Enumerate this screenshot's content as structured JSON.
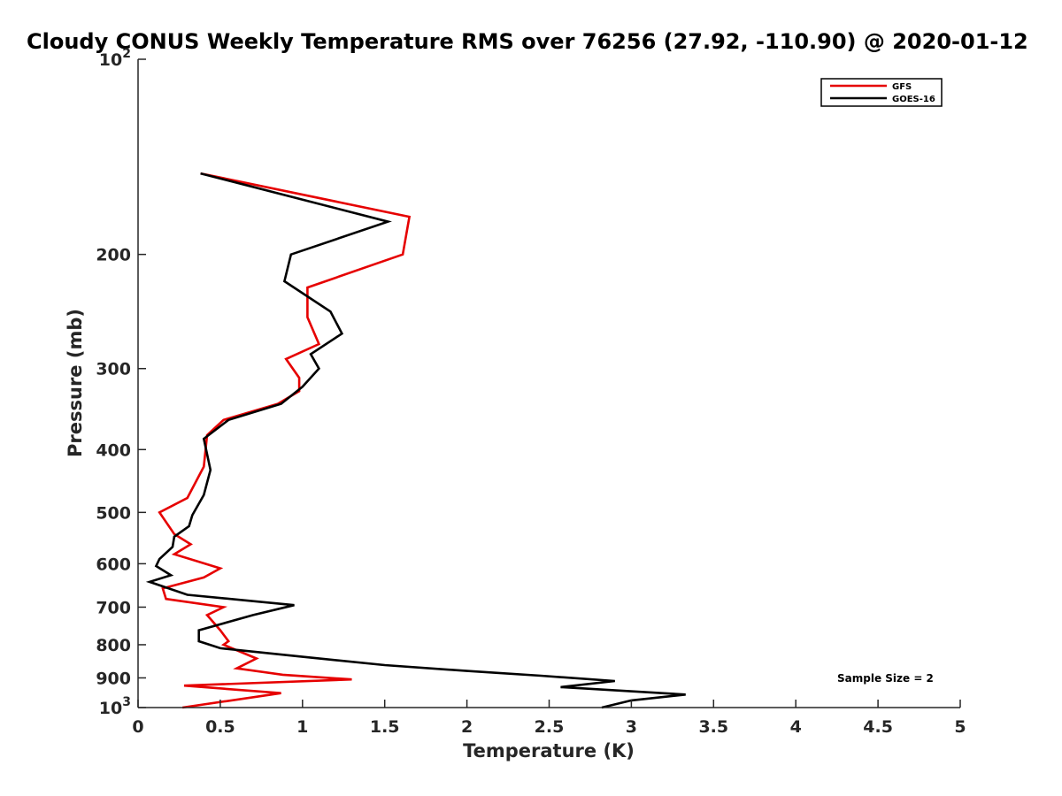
{
  "chart_data": {
    "type": "line",
    "title": "Cloudy CONUS Weekly Temperature RMS over 76256 (27.92, -110.90) @ 2020-01-12",
    "xlabel": "Temperature (K)",
    "ylabel": "Pressure (mb)",
    "xlim": [
      0,
      5
    ],
    "ylim": [
      100,
      1000
    ],
    "yscale": "log",
    "y_reversed": true,
    "grid": false,
    "legend_position": "top-right",
    "x_ticks": [
      {
        "value": 0,
        "label": "0"
      },
      {
        "value": 0.5,
        "label": "0.5"
      },
      {
        "value": 1,
        "label": "1"
      },
      {
        "value": 1.5,
        "label": "1.5"
      },
      {
        "value": 2,
        "label": "2"
      },
      {
        "value": 2.5,
        "label": "2.5"
      },
      {
        "value": 3,
        "label": "3"
      },
      {
        "value": 3.5,
        "label": "3.5"
      },
      {
        "value": 4,
        "label": "4"
      },
      {
        "value": 4.5,
        "label": "4.5"
      },
      {
        "value": 5,
        "label": "5"
      }
    ],
    "y_ticks": [
      {
        "value": 100,
        "base": "10",
        "exp": "2"
      },
      {
        "value": 200,
        "label": "200"
      },
      {
        "value": 300,
        "label": "300"
      },
      {
        "value": 400,
        "label": "400"
      },
      {
        "value": 500,
        "label": "500"
      },
      {
        "value": 600,
        "label": "600"
      },
      {
        "value": 700,
        "label": "700"
      },
      {
        "value": 800,
        "label": "800"
      },
      {
        "value": 900,
        "label": "900"
      },
      {
        "value": 1000,
        "base": "10",
        "exp": "3"
      }
    ],
    "series": [
      {
        "name": "GFS",
        "color": "#e60000",
        "points": [
          [
            0.38,
            150
          ],
          [
            1.65,
            175
          ],
          [
            1.61,
            200
          ],
          [
            1.03,
            225
          ],
          [
            1.03,
            250
          ],
          [
            1.1,
            275
          ],
          [
            0.9,
            290
          ],
          [
            0.98,
            310
          ],
          [
            0.98,
            325
          ],
          [
            0.85,
            340
          ],
          [
            0.52,
            360
          ],
          [
            0.42,
            380
          ],
          [
            0.4,
            425
          ],
          [
            0.3,
            475
          ],
          [
            0.13,
            500
          ],
          [
            0.22,
            540
          ],
          [
            0.32,
            560
          ],
          [
            0.22,
            580
          ],
          [
            0.5,
            610
          ],
          [
            0.4,
            630
          ],
          [
            0.15,
            655
          ],
          [
            0.17,
            680
          ],
          [
            0.52,
            700
          ],
          [
            0.42,
            720
          ],
          [
            0.5,
            760
          ],
          [
            0.55,
            790
          ],
          [
            0.52,
            800
          ],
          [
            0.72,
            840
          ],
          [
            0.6,
            870
          ],
          [
            0.88,
            890
          ],
          [
            1.3,
            905
          ],
          [
            0.28,
            925
          ],
          [
            0.87,
            950
          ],
          [
            0.27,
            1000
          ]
        ]
      },
      {
        "name": "GOES-16",
        "color": "#000000",
        "points": [
          [
            0.38,
            150
          ],
          [
            1.52,
            178
          ],
          [
            0.93,
            200
          ],
          [
            0.89,
            220
          ],
          [
            1.17,
            245
          ],
          [
            1.24,
            265
          ],
          [
            1.05,
            285
          ],
          [
            1.1,
            300
          ],
          [
            1.0,
            320
          ],
          [
            0.87,
            340
          ],
          [
            0.55,
            360
          ],
          [
            0.4,
            385
          ],
          [
            0.44,
            430
          ],
          [
            0.4,
            470
          ],
          [
            0.33,
            505
          ],
          [
            0.31,
            525
          ],
          [
            0.22,
            545
          ],
          [
            0.21,
            565
          ],
          [
            0.13,
            590
          ],
          [
            0.11,
            605
          ],
          [
            0.2,
            625
          ],
          [
            0.07,
            640
          ],
          [
            0.3,
            670
          ],
          [
            0.95,
            695
          ],
          [
            0.7,
            720
          ],
          [
            0.37,
            760
          ],
          [
            0.37,
            790
          ],
          [
            0.5,
            810
          ],
          [
            1.0,
            835
          ],
          [
            1.5,
            860
          ],
          [
            2.0,
            878
          ],
          [
            2.45,
            893
          ],
          [
            2.9,
            910
          ],
          [
            2.57,
            930
          ],
          [
            3.33,
            955
          ],
          [
            3.0,
            975
          ],
          [
            2.82,
            1000
          ]
        ]
      }
    ],
    "annotations": [
      {
        "text": "Sample Size = 2",
        "x": 4.0,
        "y": 900
      }
    ]
  }
}
